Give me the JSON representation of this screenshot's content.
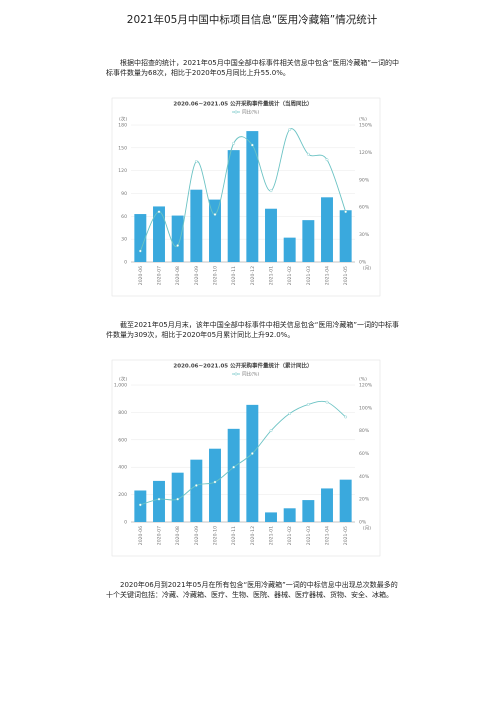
{
  "title": "2021年05月中国中标项目信息“医用冷藏箱”情况统计",
  "paragraphs": [
    "根据中招查的统计，2021年05月中国全部中标事件相关信息中包含“医用冷藏箱”一词的中标事件数量为68次，相比于2020年05月同比上升55.0%。",
    "截至2021年05月月末，该年中国全部中标事件中相关信息包含“医用冷藏箱”一词的中标事件数量为309次，相比于2020年05月累计同比上升92.0%。",
    "2020年06月到2021年05月在所有包含“医用冷藏箱”一词的中标信息中出现总次数最多的十个关键词包括：冷藏、冷藏箱、医疗、生物、医院、器械、医疗器械、货物、安全、冰箱。"
  ],
  "chart_data": [
    {
      "type": "bar",
      "title": "2020.06~2021.05 公开采购事件量统计（当周同比）",
      "ylabel": "(次)",
      "y2label": "(%)",
      "xlabel": "(月)",
      "categories": [
        "2020-06",
        "2020-07",
        "2020-08",
        "2020-09",
        "2020-10",
        "2020-11",
        "2020-12",
        "2021-01",
        "2021-02",
        "2021-03",
        "2021-04",
        "2021-05"
      ],
      "series": [
        {
          "color": "#3aa9dd",
          "values": [
            63,
            73,
            61,
            95,
            82,
            147,
            172,
            70,
            32,
            55,
            85,
            68
          ]
        },
        {
          "name": "同比(%)",
          "type": "line",
          "axis": "y2",
          "color": "#6cc3c4",
          "values": [
            12,
            55,
            18,
            110,
            52,
            130,
            128,
            78,
            145,
            118,
            112,
            55
          ]
        }
      ],
      "ylim": [
        0,
        180
      ],
      "yticks": [
        0,
        30,
        60,
        90,
        120,
        150,
        180
      ],
      "y2lim": [
        0,
        150
      ],
      "y2ticks": [
        {
          "value": 0,
          "label": "0%"
        },
        {
          "value": 30,
          "label": "30%"
        },
        {
          "value": 60,
          "label": "60%"
        },
        {
          "value": 90,
          "label": "90%"
        },
        {
          "value": 120,
          "label": "120%"
        },
        {
          "value": 150,
          "label": "150%"
        }
      ],
      "grid": true
    },
    {
      "type": "bar",
      "title": "2020.06~2021.05 公开采购事件量统计（累计同比）",
      "ylabel": "(次)",
      "y2label": "(%)",
      "xlabel": "(月)",
      "categories": [
        "2020-06",
        "2020-07",
        "2020-08",
        "2020-09",
        "2020-10",
        "2020-11",
        "2020-12",
        "2021-01",
        "2021-02",
        "2021-03",
        "2021-04",
        "2021-05"
      ],
      "series": [
        {
          "color": "#3aa9dd",
          "values": [
            230,
            300,
            360,
            455,
            535,
            680,
            855,
            70,
            100,
            160,
            245,
            309
          ]
        },
        {
          "name": "同比(%)",
          "type": "line",
          "axis": "y2",
          "color": "#6cc3c4",
          "values": [
            15,
            20,
            20,
            32,
            35,
            48,
            60,
            80,
            95,
            103,
            105,
            92
          ]
        }
      ],
      "ylim": [
        0,
        1000
      ],
      "yticks": [
        0,
        200,
        400,
        600,
        800,
        {
          "value": 1000,
          "label": "1,000"
        }
      ],
      "y2lim": [
        0,
        120
      ],
      "y2ticks": [
        {
          "value": 0,
          "label": "0%"
        },
        {
          "value": 20,
          "label": "20%"
        },
        {
          "value": 40,
          "label": "40%"
        },
        {
          "value": 60,
          "label": "60%"
        },
        {
          "value": 80,
          "label": "80%"
        },
        {
          "value": 100,
          "label": "100%"
        },
        {
          "value": 120,
          "label": "120%"
        }
      ],
      "grid": true
    }
  ]
}
